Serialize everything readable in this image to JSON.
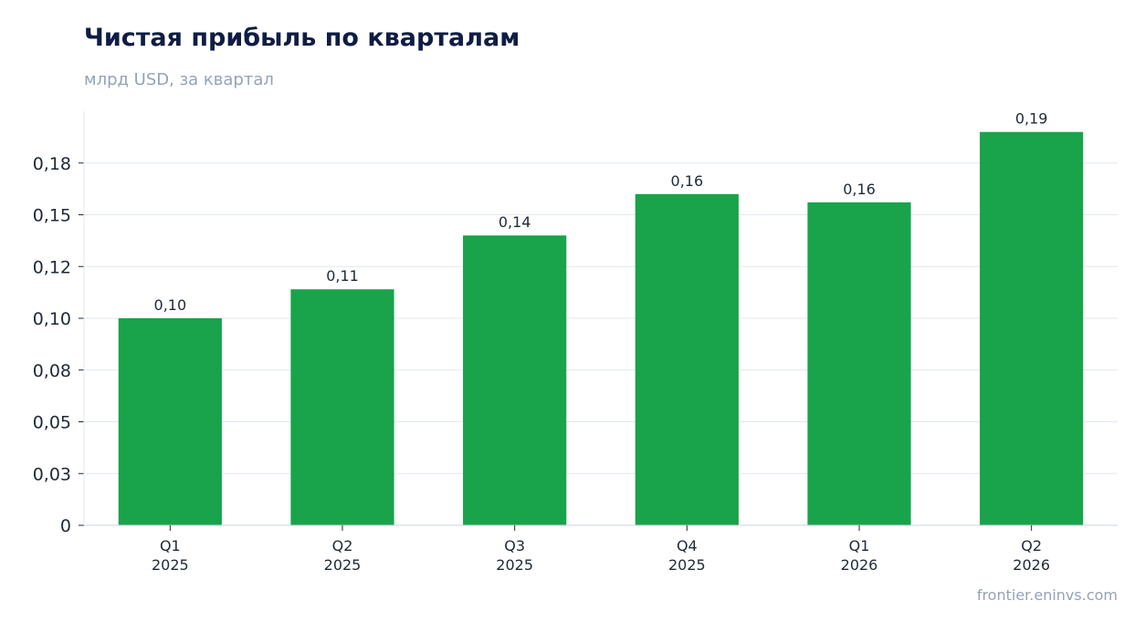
{
  "header": {
    "title": "Чистая прибыль по кварталам",
    "subtitle": "млрд USD, за квартал"
  },
  "footer": {
    "source": "frontier.eninvs.com"
  },
  "colors": {
    "bar": "#19a34a",
    "grid": "#e2e8f0",
    "axis": "#cbd5e1",
    "title": "#0f1d45",
    "muted": "#94a3b8"
  },
  "chart_data": {
    "type": "bar",
    "title": "Чистая прибыль по кварталам",
    "subtitle": "млрд USD, за квартал",
    "categories": [
      [
        "Q1",
        "2025"
      ],
      [
        "Q2",
        "2025"
      ],
      [
        "Q3",
        "2025"
      ],
      [
        "Q4",
        "2025"
      ],
      [
        "Q1",
        "2026"
      ],
      [
        "Q2",
        "2026"
      ]
    ],
    "values": [
      0.1,
      0.114,
      0.14,
      0.16,
      0.156,
      0.19
    ],
    "data_labels": [
      "0,10",
      "0,11",
      "0,14",
      "0,16",
      "0,16",
      "0,19"
    ],
    "ylim": [
      0,
      0.2
    ],
    "y_ticks": [
      0,
      0.025,
      0.05,
      0.075,
      0.1,
      0.125,
      0.15,
      0.175
    ],
    "y_tick_labels": [
      "0",
      "0,03",
      "0,05",
      "0,08",
      "0,10",
      "0,12",
      "0,15",
      "0,18"
    ],
    "grid": true,
    "legend": "none"
  }
}
